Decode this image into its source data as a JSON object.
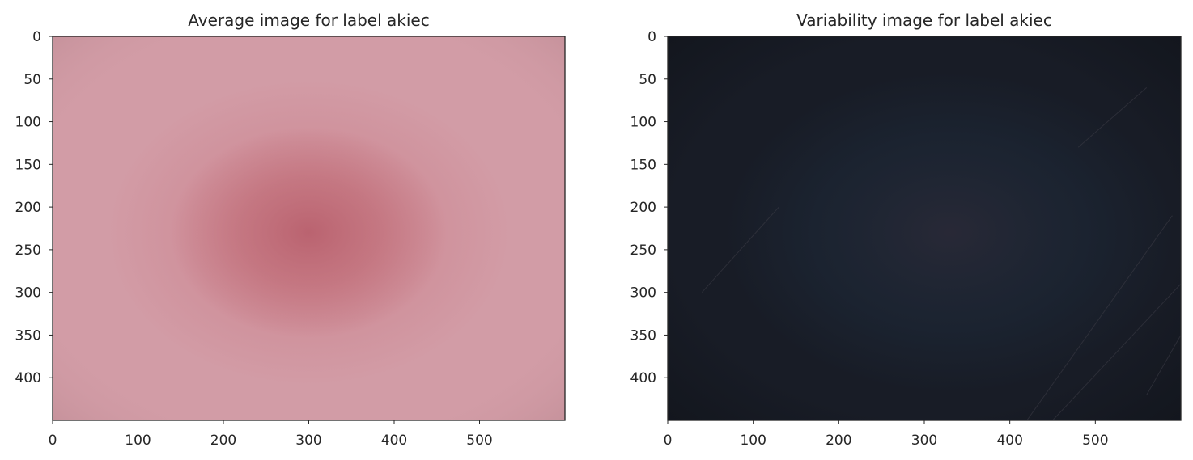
{
  "chart_data": [
    {
      "type": "heatmap",
      "title": "Average image for label akiec",
      "xlabel": "",
      "ylabel": "",
      "image_width": 600,
      "image_height": 450,
      "xlim": [
        0,
        600
      ],
      "ylim": [
        450,
        0
      ],
      "x_ticks": [
        0,
        100,
        200,
        300,
        400,
        500
      ],
      "y_ticks": [
        0,
        50,
        100,
        150,
        200,
        250,
        300,
        350,
        400
      ],
      "grid": false,
      "colors": {
        "background": "#d29ca6",
        "edge": "#c08d96",
        "lesion_outer": "#cd8691",
        "lesion_core": "#c06d78",
        "lesion_center": "#b85f6c"
      }
    },
    {
      "type": "heatmap",
      "title": "Variability image for label akiec",
      "xlabel": "",
      "ylabel": "",
      "image_width": 600,
      "image_height": 450,
      "xlim": [
        0,
        600
      ],
      "ylim": [
        450,
        0
      ],
      "x_ticks": [
        0,
        100,
        200,
        300,
        400,
        500
      ],
      "y_ticks": [
        0,
        50,
        100,
        150,
        200,
        250,
        300,
        350,
        400
      ],
      "grid": false,
      "colors": {
        "background": "#181c26",
        "edge": "#12151c",
        "center_glow": "#2a2a38",
        "blue_glow": "#1e2a3a",
        "hair": "#3a3a44"
      }
    }
  ]
}
